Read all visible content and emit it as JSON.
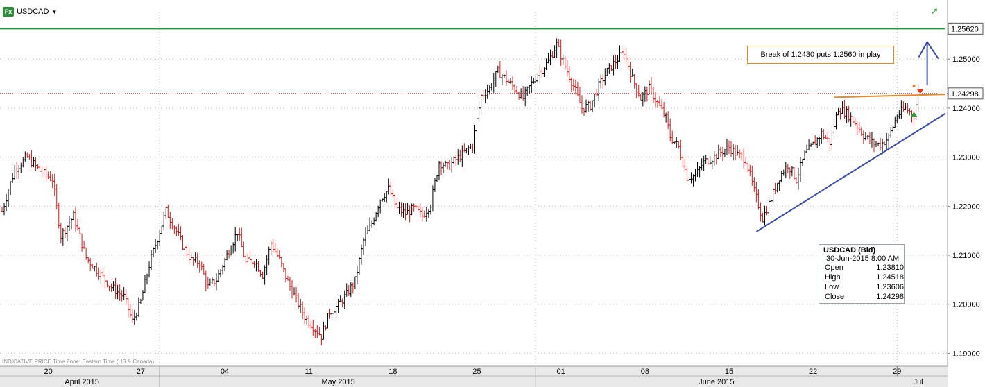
{
  "header": {
    "symbol": "USDCAD",
    "fx_badge": "Fx",
    "dropdown_icon": "caret-down-icon",
    "trend_icon": "trend-up-icon"
  },
  "footer": {
    "indicative_text": "INDICATIVE PRICE   Time Zone: Eastern Time (US & Canada)"
  },
  "annotation": {
    "text": "Break of 1.2430 puts 1.2560 in play"
  },
  "info_box": {
    "title": "USDCAD (Bid)",
    "datetime": "30-Jun-2015 8:00 AM",
    "rows": [
      {
        "label": "Open",
        "value": "1.23810"
      },
      {
        "label": "High",
        "value": "1.24518"
      },
      {
        "label": "Low",
        "value": "1.23606"
      },
      {
        "label": "Close",
        "value": "1.24298"
      }
    ]
  },
  "colors": {
    "up_bar": "#000000",
    "down_bar": "#d21a1a",
    "resistance_line": "#1a9c3a",
    "current_price_line": "#c0262a",
    "trend_line": "#3a4ba8",
    "resistance_trend": "#e28a2b",
    "axis_bg": "#e9e9e9",
    "grid": "#bdbdbd"
  },
  "chart_data": {
    "type": "ohlc",
    "instrument": "USDCAD",
    "y_range": [
      1.1885,
      1.2595
    ],
    "y_ticks": [
      "1.25000",
      "1.24000",
      "1.23000",
      "1.22000",
      "1.21000",
      "1.20000",
      "1.19000"
    ],
    "price_labels": {
      "resistance": "1.25620",
      "current": "1.24298"
    },
    "horizontal_levels": {
      "resistance": 1.2562,
      "current": 1.24298
    },
    "x_day_labels": [
      "20",
      "27",
      "04",
      "11",
      "18",
      "25",
      "01",
      "08",
      "15",
      "22",
      "29"
    ],
    "x_month_labels": [
      "April 2015",
      "May 2015",
      "June 2015",
      "Jul"
    ],
    "bar_index_range": [
      0,
      440
    ],
    "day_label_bar_index": [
      22,
      66,
      106,
      146,
      186,
      226,
      266,
      306,
      346,
      386,
      426
    ],
    "month_divider_bar_index": [
      75,
      254
    ],
    "month_label_bar_index": [
      38,
      160,
      340,
      436
    ],
    "week_divider_bar_index": [
      75,
      254,
      426
    ],
    "trendlines": [
      {
        "name": "support",
        "from": [
          359,
          1.2148
        ],
        "to": [
          449,
          1.2389
        ]
      },
      {
        "name": "resistance",
        "from": [
          396,
          1.2422
        ],
        "to": [
          449,
          1.2428
        ]
      }
    ],
    "anchors": [
      [
        0,
        1.219
      ],
      [
        6,
        1.2275
      ],
      [
        12,
        1.23
      ],
      [
        18,
        1.2272
      ],
      [
        24,
        1.2255
      ],
      [
        28,
        1.214
      ],
      [
        34,
        1.218
      ],
      [
        40,
        1.2095
      ],
      [
        46,
        1.2065
      ],
      [
        52,
        1.2035
      ],
      [
        58,
        1.2015
      ],
      [
        62,
        1.1965
      ],
      [
        66,
        1.2005
      ],
      [
        70,
        1.208
      ],
      [
        74,
        1.2135
      ],
      [
        78,
        1.219
      ],
      [
        82,
        1.2158
      ],
      [
        86,
        1.212
      ],
      [
        90,
        1.209
      ],
      [
        94,
        1.2085
      ],
      [
        98,
        1.2035
      ],
      [
        102,
        1.205
      ],
      [
        108,
        1.211
      ],
      [
        112,
        1.2148
      ],
      [
        116,
        1.2085
      ],
      [
        120,
        1.209
      ],
      [
        124,
        1.206
      ],
      [
        128,
        1.2125
      ],
      [
        132,
        1.209
      ],
      [
        136,
        1.2045
      ],
      [
        140,
        1.201
      ],
      [
        144,
        1.1975
      ],
      [
        148,
        1.1955
      ],
      [
        152,
        1.1935
      ],
      [
        156,
        1.1985
      ],
      [
        160,
        1.1998
      ],
      [
        164,
        1.202
      ],
      [
        168,
        1.2048
      ],
      [
        172,
        1.213
      ],
      [
        176,
        1.2165
      ],
      [
        180,
        1.2215
      ],
      [
        184,
        1.2235
      ],
      [
        188,
        1.2195
      ],
      [
        192,
        1.2185
      ],
      [
        196,
        1.2195
      ],
      [
        200,
        1.218
      ],
      [
        204,
        1.2205
      ],
      [
        208,
        1.229
      ],
      [
        212,
        1.228
      ],
      [
        216,
        1.2295
      ],
      [
        220,
        1.231
      ],
      [
        224,
        1.2325
      ],
      [
        228,
        1.2425
      ],
      [
        232,
        1.244
      ],
      [
        236,
        1.2475
      ],
      [
        240,
        1.2458
      ],
      [
        244,
        1.244
      ],
      [
        248,
        1.242
      ],
      [
        252,
        1.245
      ],
      [
        256,
        1.2475
      ],
      [
        260,
        1.2495
      ],
      [
        264,
        1.253
      ],
      [
        268,
        1.2485
      ],
      [
        272,
        1.2445
      ],
      [
        276,
        1.24
      ],
      [
        280,
        1.2405
      ],
      [
        284,
        1.2445
      ],
      [
        288,
        1.2475
      ],
      [
        292,
        1.2495
      ],
      [
        296,
        1.2515
      ],
      [
        300,
        1.246
      ],
      [
        304,
        1.242
      ],
      [
        308,
        1.244
      ],
      [
        312,
        1.241
      ],
      [
        316,
        1.238
      ],
      [
        318,
        1.2342
      ],
      [
        322,
        1.232
      ],
      [
        326,
        1.226
      ],
      [
        330,
        1.2262
      ],
      [
        334,
        1.229
      ],
      [
        338,
        1.2298
      ],
      [
        342,
        1.231
      ],
      [
        346,
        1.232
      ],
      [
        350,
        1.2305
      ],
      [
        354,
        1.2295
      ],
      [
        358,
        1.223
      ],
      [
        362,
        1.2175
      ],
      [
        366,
        1.2215
      ],
      [
        370,
        1.226
      ],
      [
        374,
        1.2285
      ],
      [
        378,
        1.2255
      ],
      [
        382,
        1.2305
      ],
      [
        386,
        1.2325
      ],
      [
        390,
        1.2348
      ],
      [
        394,
        1.233
      ],
      [
        398,
        1.24
      ],
      [
        402,
        1.239
      ],
      [
        406,
        1.237
      ],
      [
        410,
        1.2345
      ],
      [
        414,
        1.233
      ],
      [
        418,
        1.2325
      ],
      [
        422,
        1.234
      ],
      [
        426,
        1.2385
      ],
      [
        430,
        1.24
      ],
      [
        434,
        1.2385
      ],
      [
        436,
        1.243
      ]
    ],
    "arrows": [
      {
        "name": "current-price-marker",
        "at": [
          437,
          1.2432
        ],
        "direction": "down",
        "color": "#e03a1a"
      },
      {
        "name": "green-marker",
        "at": [
          434,
          1.2388
        ],
        "direction": "up",
        "color": "#2e9b3a"
      }
    ]
  }
}
